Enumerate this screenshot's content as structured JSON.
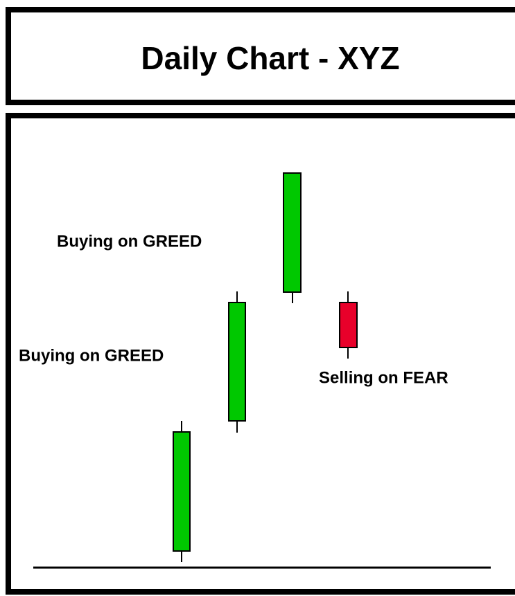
{
  "header": {
    "title": "Daily Chart - XYZ"
  },
  "annotations": [
    {
      "text": "Buying on GREED"
    },
    {
      "text": "Buying on GREED"
    },
    {
      "text": "Selling on FEAR"
    }
  ]
}
